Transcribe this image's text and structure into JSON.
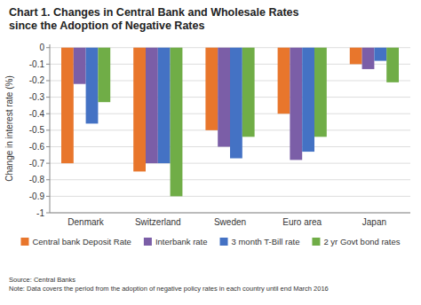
{
  "chart_data": {
    "type": "bar",
    "title": "Chart 1. Changes in Central Bank and Wholesale Rates\nsince the Adoption of Negative Rates",
    "y_label": "Change in interest rate (%)",
    "annotations": [
      "Source: Central Banks\nNote: Data covers the period from the adoption of negative policy rates in each country until end March 2016"
    ],
    "categories": [
      "Denmark",
      "Switzerland",
      "Sweden",
      "Euro area",
      "Japan"
    ],
    "series": [
      {
        "name": "Central bank Deposit Rate",
        "color": "#E8762C",
        "values": [
          -0.7,
          -0.75,
          -0.5,
          -0.4,
          -0.1
        ]
      },
      {
        "name": "Interbank rate",
        "color": "#7B5EA7",
        "values": [
          -0.22,
          -0.7,
          -0.6,
          -0.68,
          -0.13
        ]
      },
      {
        "name": "3 month T-Bill rate",
        "color": "#4472C4",
        "values": [
          -0.46,
          -0.7,
          -0.67,
          -0.63,
          -0.08
        ]
      },
      {
        "name": "2 yr Govt bond rates",
        "color": "#70AD47",
        "values": [
          -0.33,
          -0.9,
          -0.54,
          -0.54,
          -0.21
        ]
      }
    ],
    "ylim": [
      -1.0,
      0.02
    ],
    "yticks": [
      0,
      -0.1,
      -0.2,
      -0.3,
      -0.4,
      -0.5,
      -0.6,
      -0.7,
      -0.8,
      -0.9,
      -1
    ],
    "grid": true,
    "legend": "bottom"
  }
}
